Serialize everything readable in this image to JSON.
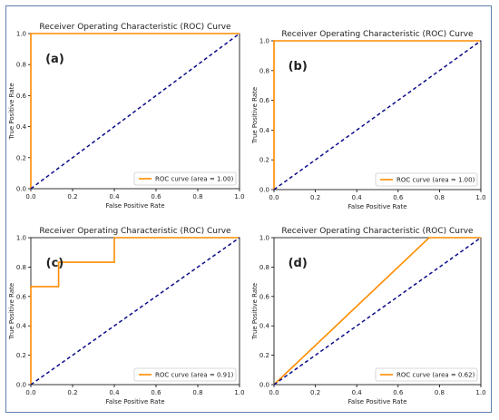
{
  "colors": {
    "roc": "#ff8c00",
    "diagonal": "#0b0b8a",
    "axis": "#000000",
    "frame": "#5b7fb1"
  },
  "chart_data": [
    {
      "type": "line",
      "panel_label": "(a)",
      "title": "Receiver Operating Characteristic (ROC) Curve",
      "xlabel": "False Positive Rate",
      "ylabel": "True Positive Rate",
      "xlim": [
        0,
        1
      ],
      "ylim": [
        0,
        1
      ],
      "xticks": [
        "0.0",
        "0.2",
        "0.4",
        "0.6",
        "0.8",
        "1.0"
      ],
      "yticks": [
        "0.0",
        "0.2",
        "0.4",
        "0.6",
        "0.8",
        "1.0"
      ],
      "grid": false,
      "legend_position": "lower right",
      "series": [
        {
          "name": "ROC curve (area = 1.00)",
          "style": "solid",
          "x": [
            0,
            0,
            1
          ],
          "y": [
            0,
            1,
            1
          ]
        },
        {
          "style": "dashed",
          "x": [
            0,
            1
          ],
          "y": [
            0,
            1
          ]
        }
      ]
    },
    {
      "type": "line",
      "panel_label": "(b)",
      "title": "Receiver Operating Characteristic (ROC) Curve",
      "xlabel": "False Positive Rate",
      "ylabel": "True Positive Rate",
      "xlim": [
        0,
        1
      ],
      "ylim": [
        0,
        1
      ],
      "xticks": [
        "0.0",
        "0.2",
        "0.4",
        "0.6",
        "0.8",
        "1.0"
      ],
      "yticks": [
        "0.0",
        "0.2",
        "0.4",
        "0.6",
        "0.8",
        "1.0"
      ],
      "grid": false,
      "legend_position": "lower right",
      "series": [
        {
          "name": "ROC curve (area = 1.00)",
          "style": "solid",
          "x": [
            0,
            0,
            1
          ],
          "y": [
            0,
            1,
            1
          ]
        },
        {
          "style": "dashed",
          "x": [
            0,
            1
          ],
          "y": [
            0,
            1
          ]
        }
      ]
    },
    {
      "type": "line",
      "panel_label": "(c)",
      "title": "Receiver Operating Characteristic (ROC) Curve",
      "xlabel": "False Positive Rate",
      "ylabel": "True Positive Rate",
      "xlim": [
        0,
        1
      ],
      "ylim": [
        0,
        1
      ],
      "xticks": [
        "0.0",
        "0.2",
        "0.4",
        "0.6",
        "0.8",
        "1.0"
      ],
      "yticks": [
        "0.0",
        "0.2",
        "0.4",
        "0.6",
        "0.8",
        "1.0"
      ],
      "grid": false,
      "legend_position": "lower right",
      "series": [
        {
          "name": "ROC curve (area = 0.91)",
          "style": "solid",
          "x": [
            0,
            0,
            0.133,
            0.133,
            0.4,
            0.4,
            1
          ],
          "y": [
            0,
            0.667,
            0.667,
            0.833,
            0.833,
            1,
            1
          ]
        },
        {
          "style": "dashed",
          "x": [
            0,
            1
          ],
          "y": [
            0,
            1
          ]
        }
      ]
    },
    {
      "type": "line",
      "panel_label": "(d)",
      "title": "Receiver Operating Characteristic (ROC) Curve",
      "xlabel": "False Positive Rate",
      "ylabel": "True Positive Rate",
      "xlim": [
        0,
        1
      ],
      "ylim": [
        0,
        1
      ],
      "xticks": [
        "0.0",
        "0.2",
        "0.4",
        "0.6",
        "0.8",
        "1.0"
      ],
      "yticks": [
        "0.0",
        "0.2",
        "0.4",
        "0.6",
        "0.8",
        "1.0"
      ],
      "grid": false,
      "legend_position": "lower right",
      "series": [
        {
          "name": "ROC curve (area = 0.62)",
          "style": "solid",
          "x": [
            0,
            0.75,
            1
          ],
          "y": [
            0,
            1,
            1
          ]
        },
        {
          "style": "dashed",
          "x": [
            0,
            1
          ],
          "y": [
            0,
            1
          ]
        }
      ]
    }
  ]
}
